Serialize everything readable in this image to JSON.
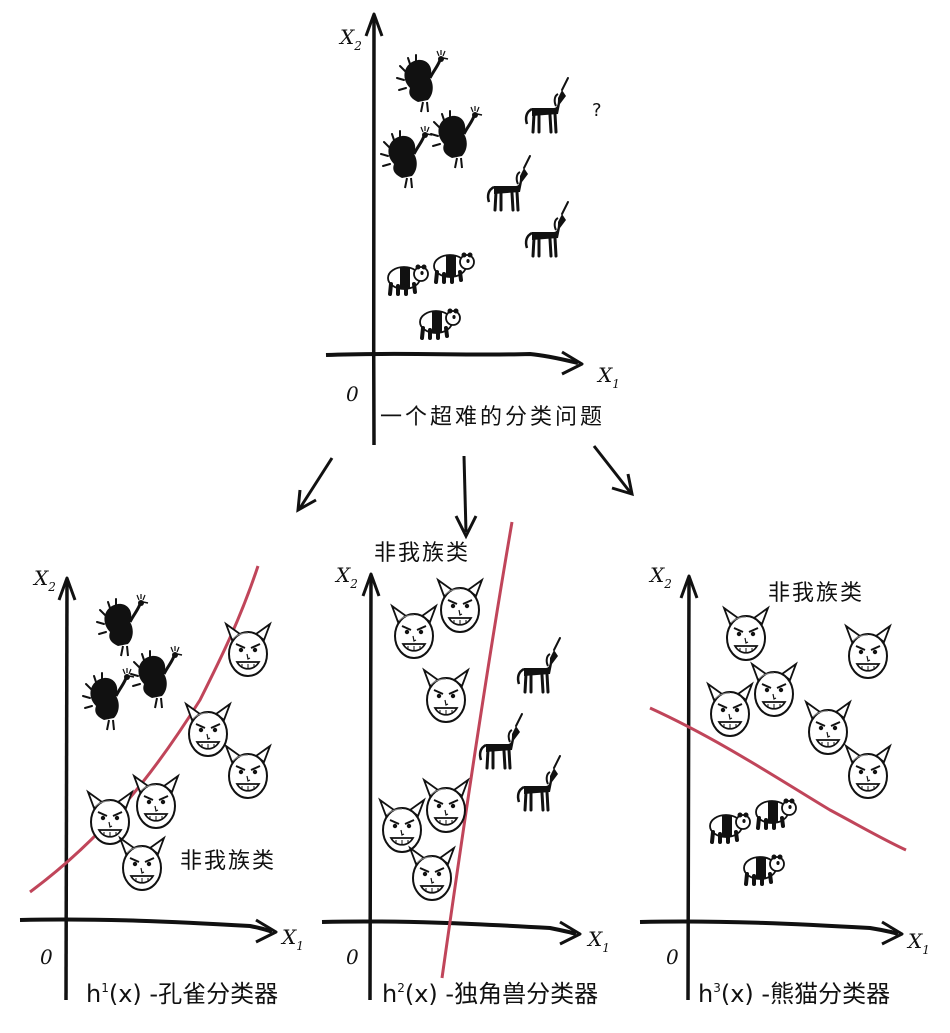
{
  "main": {
    "x1": "X",
    "x1_sub": "1",
    "x2": "X",
    "x2_sub": "2",
    "origin": "0",
    "unknown": "?",
    "caption": "一个超难的分类问题"
  },
  "panels": [
    {
      "x1": "X",
      "x1_sub": "1",
      "x2": "X",
      "x2_sub": "2",
      "origin": "0",
      "class_label": "非我族类",
      "caption_h": "h",
      "caption_sup": "1",
      "caption_rest": "(x) -孔雀分类器"
    },
    {
      "x1": "X",
      "x1_sub": "1",
      "x2": "X",
      "x2_sub": "2",
      "origin": "0",
      "class_label": "非我族类",
      "caption_h": "h",
      "caption_sup": "2",
      "caption_rest": "(x) -独角兽分类器"
    },
    {
      "x1": "X",
      "x1_sub": "1",
      "x2": "X",
      "x2_sub": "2",
      "origin": "0",
      "class_label": "非我族类",
      "caption_h": "h",
      "caption_sup": "3",
      "caption_rest": "(x) -熊猫分类器"
    }
  ],
  "icons": {
    "peacock": "peacock-icon",
    "unicorn": "unicorn-icon",
    "panda": "panda-icon",
    "devil": "devil-face-icon"
  },
  "colors": {
    "ink": "#111111",
    "boundary": "#c0455a"
  }
}
